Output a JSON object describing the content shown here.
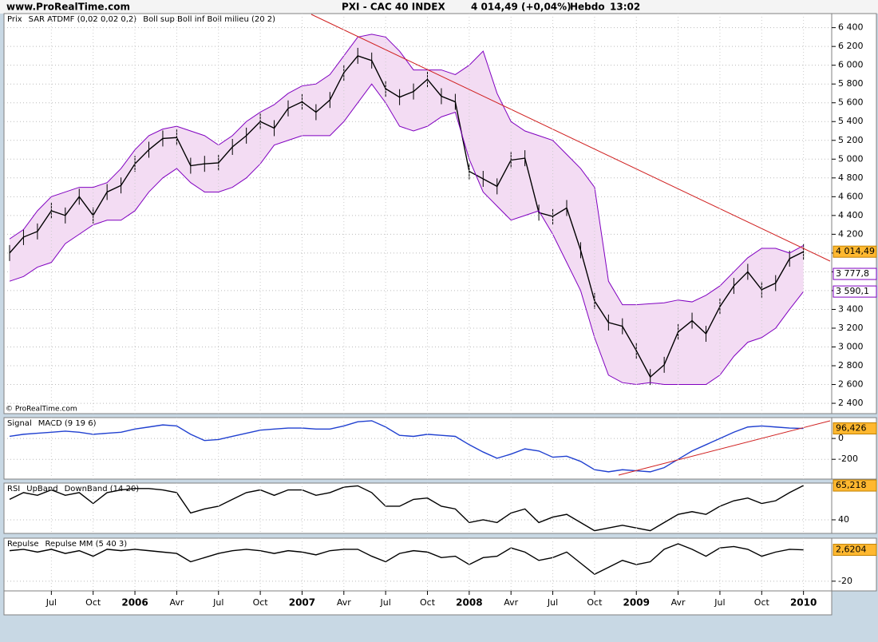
{
  "header": {
    "site": "www.ProRealTime.com",
    "instrument": "PXI - CAC 40 INDEX",
    "quote": "4 014,49 (+0,04%)",
    "period": "Hebdo",
    "time": "13:02",
    "watermark": "© ProRealTime.com"
  },
  "chart_data": [
    {
      "type": "line",
      "legend": [
        "Prix",
        "SAR ATDMF (0,02 0,02 0,2)",
        "Boll sup Boll inf Boll milieu (20 2)"
      ],
      "legend_colors": [
        "#000000",
        "#2ca02c",
        "#8000c0"
      ],
      "categories": [
        null,
        null,
        null,
        "Jul",
        null,
        null,
        "Oct",
        null,
        null,
        "2006",
        null,
        null,
        "Avr",
        null,
        null,
        "Jul",
        null,
        null,
        "Oct",
        null,
        null,
        "2007",
        null,
        null,
        "Avr",
        null,
        null,
        "Jul",
        null,
        null,
        "Oct",
        null,
        null,
        "2008",
        null,
        null,
        "Avr",
        null,
        null,
        "Jul",
        null,
        null,
        "Oct",
        null,
        null,
        "2009",
        null,
        null,
        "Avr",
        null,
        null,
        "Jul",
        null,
        null,
        "Oct",
        null,
        null,
        "2010"
      ],
      "series": [
        {
          "color": "#000000",
          "values": [
            4000,
            4170,
            4230,
            4450,
            4400,
            4600,
            4400,
            4650,
            4720,
            4950,
            5100,
            5220,
            5230,
            4930,
            4950,
            4960,
            5130,
            5250,
            5400,
            5330,
            5540,
            5610,
            5500,
            5630,
            5920,
            6100,
            6050,
            5750,
            5660,
            5720,
            5850,
            5670,
            5610,
            4870,
            4790,
            4710,
            4990,
            5010,
            4430,
            4390,
            4480,
            4030,
            3490,
            3260,
            3220,
            2960,
            2680,
            2810,
            3160,
            3280,
            3140,
            3430,
            3650,
            3800,
            3610,
            3680,
            3940,
            4014.49
          ]
        },
        {
          "color": "#8000c0",
          "values": [
            4150,
            4250,
            4450,
            4600,
            4650,
            4700,
            4700,
            4750,
            4900,
            5100,
            5250,
            5320,
            5350,
            5300,
            5250,
            5150,
            5250,
            5400,
            5500,
            5580,
            5700,
            5780,
            5800,
            5900,
            6100,
            6300,
            6330,
            6300,
            6150,
            5950,
            5950,
            5950,
            5900,
            6000,
            6150,
            5700,
            5400,
            5300,
            5250,
            5200,
            5050,
            4900,
            4700,
            3700,
            3450,
            3450,
            3460,
            3470,
            3500,
            3480,
            3550,
            3650,
            3800,
            3950,
            4050,
            4050,
            4000,
            4080
          ]
        },
        {
          "color": "#8000c0",
          "values": [
            3700,
            3750,
            3850,
            3900,
            4100,
            4200,
            4300,
            4350,
            4350,
            4450,
            4650,
            4800,
            4900,
            4750,
            4650,
            4650,
            4700,
            4800,
            4950,
            5150,
            5200,
            5250,
            5250,
            5250,
            5400,
            5600,
            5800,
            5600,
            5350,
            5300,
            5350,
            5450,
            5500,
            5000,
            4650,
            4500,
            4350,
            4400,
            4450,
            4200,
            3900,
            3600,
            3100,
            2700,
            2620,
            2600,
            2620,
            2600,
            2600,
            2600,
            2600,
            2700,
            2900,
            3050,
            3100,
            3200,
            3400,
            3590.1
          ]
        }
      ],
      "ylim": [
        2290,
        6550
      ],
      "yticks": [
        {
          "value": 2400,
          "label": "2 400"
        },
        {
          "value": 2600,
          "label": "2 600"
        },
        {
          "value": 2800,
          "label": "2 800"
        },
        {
          "value": 3000,
          "label": "3 000"
        },
        {
          "value": 3200,
          "label": "3 200"
        },
        {
          "value": 3400,
          "label": "3 400"
        },
        {
          "value": 3600,
          "label": "3 600"
        },
        {
          "value": 3800,
          "label": "3 800"
        },
        {
          "value": 4000,
          "label": "4 000"
        },
        {
          "value": 4200,
          "label": "4 200"
        },
        {
          "value": 4400,
          "label": "4 400"
        },
        {
          "value": 4600,
          "label": "4 600"
        },
        {
          "value": 4800,
          "label": "4 800"
        },
        {
          "value": 5000,
          "label": "5 000"
        },
        {
          "value": 5200,
          "label": "5 200"
        },
        {
          "value": 5400,
          "label": "5 400"
        },
        {
          "value": 5600,
          "label": "5 600"
        },
        {
          "value": 5800,
          "label": "5 800"
        },
        {
          "value": 6000,
          "label": "6 000"
        },
        {
          "value": 6200,
          "label": "6 200"
        },
        {
          "value": 6400,
          "label": "6 400"
        }
      ],
      "last_labels": [
        {
          "value": 4014.49,
          "label": "4 014,49"
        },
        {
          "value": 3777.8,
          "label": "3 777,8"
        },
        {
          "value": 3590.1,
          "label": "3 590,1"
        }
      ],
      "grid": true
    },
    {
      "type": "line",
      "legend": [
        "Signal",
        "MACD (9 19 6)"
      ],
      "legend_colors": [
        "#d02020",
        "#2040d0"
      ],
      "series": [
        {
          "color": "#2040d0",
          "values": [
            20,
            40,
            50,
            60,
            70,
            60,
            40,
            50,
            60,
            90,
            110,
            130,
            120,
            40,
            -20,
            -10,
            20,
            50,
            80,
            90,
            100,
            100,
            90,
            90,
            120,
            160,
            170,
            110,
            30,
            20,
            40,
            30,
            20,
            -60,
            -130,
            -190,
            -150,
            -100,
            -120,
            -180,
            -170,
            -220,
            -300,
            -320,
            -300,
            -310,
            -320,
            -280,
            -200,
            -120,
            -60,
            0,
            60,
            110,
            120,
            110,
            100,
            96.426
          ]
        }
      ],
      "ylim": [
        -390,
        200
      ],
      "yticks": [
        -200,
        0
      ],
      "last_labels": [
        {
          "value": 96.426,
          "label": "96,426"
        }
      ],
      "grid": true
    },
    {
      "type": "line",
      "legend": [
        "RSI",
        "UpBand",
        "DownBand (14 20)"
      ],
      "legend_colors": [
        "#000000",
        "#20c020",
        "#d02020"
      ],
      "series": [
        {
          "color": "#000000",
          "values": [
            55,
            60,
            58,
            62,
            58,
            60,
            52,
            60,
            62,
            63,
            63,
            62,
            60,
            45,
            48,
            50,
            55,
            60,
            62,
            58,
            62,
            62,
            58,
            60,
            64,
            65,
            60,
            50,
            50,
            55,
            56,
            50,
            48,
            38,
            40,
            38,
            45,
            48,
            38,
            42,
            44,
            38,
            32,
            34,
            36,
            34,
            32,
            38,
            44,
            46,
            44,
            50,
            54,
            56,
            52,
            54,
            60,
            65.218
          ]
        }
      ],
      "ylim": [
        30,
        67
      ],
      "yticks": [
        40
      ],
      "last_labels": [
        {
          "value": 65.218,
          "label": "65,218"
        }
      ],
      "grid": true
    },
    {
      "type": "line",
      "legend": [
        "Repulse",
        "Repulse MM (5 40 3)"
      ],
      "legend_colors": [
        "#000000",
        "#d02020"
      ],
      "series": [
        {
          "color": "#000000",
          "values": [
            2,
            3,
            1,
            3,
            0,
            2,
            -2,
            3,
            2,
            3,
            2,
            1,
            0,
            -6,
            -3,
            0,
            2,
            3,
            2,
            0,
            2,
            1,
            -1,
            2,
            3,
            3,
            -2,
            -6,
            0,
            2,
            1,
            -3,
            -2,
            -8,
            -3,
            -2,
            4,
            1,
            -5,
            -3,
            1,
            -7,
            -15,
            -10,
            -5,
            -8,
            -6,
            3,
            7,
            3,
            -2,
            4,
            5,
            3,
            -2,
            1,
            3,
            2.6204
          ]
        }
      ],
      "ylim": [
        -27,
        11
      ],
      "yticks": [
        -20
      ],
      "last_labels": [
        {
          "value": 2.6204,
          "label": "2,6204"
        }
      ],
      "grid": true
    }
  ]
}
